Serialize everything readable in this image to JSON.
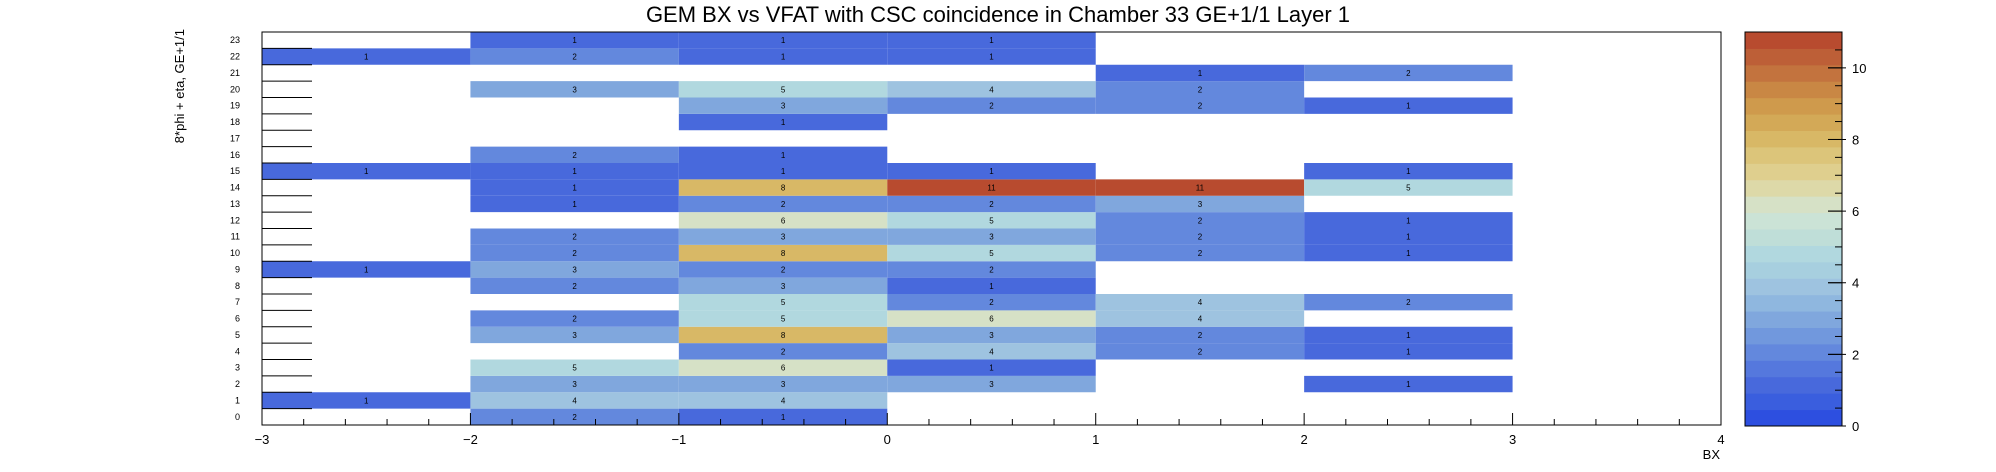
{
  "chart_data": {
    "type": "heatmap",
    "title": "GEM BX vs VFAT with CSC coincidence in Chamber 33 GE+1/1 Layer 1",
    "xlabel": "BX",
    "ylabel": "8*phi + eta, GE+1/1",
    "xlim": [
      -3,
      4
    ],
    "ylim": [
      0,
      24
    ],
    "x_tick_labels": [
      "−3",
      "−2",
      "−1",
      "0",
      "1",
      "2",
      "3",
      "4"
    ],
    "y_tick_labels": [
      "0",
      "1",
      "2",
      "3",
      "4",
      "5",
      "6",
      "7",
      "8",
      "9",
      "10",
      "11",
      "12",
      "13",
      "14",
      "15",
      "16",
      "17",
      "18",
      "19",
      "20",
      "21",
      "22",
      "23"
    ],
    "z_range": [
      0,
      11
    ],
    "z_tick_labels": [
      "0",
      "2",
      "4",
      "6",
      "8",
      "10"
    ],
    "palette": [
      "#2d4fe0",
      "#3a5ede",
      "#4869dc",
      "#5578dd",
      "#6388dd",
      "#7198dd",
      "#80a7dd",
      "#8fb7df",
      "#9ec3e0",
      "#a7cfdf",
      "#b1d8df",
      "#bfded8",
      "#cbe3d6",
      "#d6e1c6",
      "#ddd9a8",
      "#dfcf8e",
      "#dcc57a",
      "#d8b866",
      "#d3a957",
      "#cf9a4c",
      "#c98744",
      "#c3733e",
      "#bd5f37",
      "#b84b2f"
    ],
    "x_bins": [
      -3,
      -2,
      -1,
      0,
      1,
      2
    ],
    "cells": [
      [
        -2,
        0,
        2
      ],
      [
        -1,
        0,
        1
      ],
      [
        -3,
        1,
        1
      ],
      [
        -2,
        1,
        4
      ],
      [
        -1,
        1,
        4
      ],
      [
        -2,
        2,
        3
      ],
      [
        -1,
        2,
        3
      ],
      [
        0,
        2,
        3
      ],
      [
        2,
        2,
        1
      ],
      [
        -2,
        3,
        5
      ],
      [
        -1,
        3,
        6
      ],
      [
        0,
        3,
        1
      ],
      [
        -1,
        4,
        2
      ],
      [
        0,
        4,
        4
      ],
      [
        1,
        4,
        2
      ],
      [
        2,
        4,
        1
      ],
      [
        -2,
        5,
        3
      ],
      [
        -1,
        5,
        8
      ],
      [
        0,
        5,
        3
      ],
      [
        1,
        5,
        2
      ],
      [
        2,
        5,
        1
      ],
      [
        -2,
        6,
        2
      ],
      [
        -1,
        6,
        5
      ],
      [
        0,
        6,
        6
      ],
      [
        1,
        6,
        4
      ],
      [
        -1,
        7,
        5
      ],
      [
        0,
        7,
        2
      ],
      [
        1,
        7,
        4
      ],
      [
        2,
        7,
        2
      ],
      [
        -2,
        8,
        2
      ],
      [
        -1,
        8,
        3
      ],
      [
        0,
        8,
        1
      ],
      [
        -3,
        9,
        1
      ],
      [
        -2,
        9,
        3
      ],
      [
        -1,
        9,
        2
      ],
      [
        0,
        9,
        2
      ],
      [
        -2,
        10,
        2
      ],
      [
        -1,
        10,
        8
      ],
      [
        0,
        10,
        5
      ],
      [
        1,
        10,
        2
      ],
      [
        2,
        10,
        1
      ],
      [
        -2,
        11,
        2
      ],
      [
        -1,
        11,
        3
      ],
      [
        0,
        11,
        3
      ],
      [
        1,
        11,
        2
      ],
      [
        2,
        11,
        1
      ],
      [
        -1,
        12,
        6
      ],
      [
        0,
        12,
        5
      ],
      [
        1,
        12,
        2
      ],
      [
        2,
        12,
        1
      ],
      [
        -2,
        13,
        1
      ],
      [
        -1,
        13,
        2
      ],
      [
        0,
        13,
        2
      ],
      [
        1,
        13,
        3
      ],
      [
        -2,
        14,
        1
      ],
      [
        -1,
        14,
        8
      ],
      [
        0,
        14,
        11
      ],
      [
        1,
        14,
        11
      ],
      [
        2,
        14,
        5
      ],
      [
        -3,
        15,
        1
      ],
      [
        -2,
        15,
        1
      ],
      [
        -1,
        15,
        1
      ],
      [
        0,
        15,
        1
      ],
      [
        2,
        15,
        1
      ],
      [
        -2,
        16,
        2
      ],
      [
        -1,
        16,
        1
      ],
      [
        -1,
        18,
        1
      ],
      [
        -1,
        19,
        3
      ],
      [
        0,
        19,
        2
      ],
      [
        1,
        19,
        2
      ],
      [
        2,
        19,
        1
      ],
      [
        -2,
        20,
        3
      ],
      [
        -1,
        20,
        5
      ],
      [
        0,
        20,
        4
      ],
      [
        1,
        20,
        2
      ],
      [
        1,
        21,
        1
      ],
      [
        2,
        21,
        2
      ],
      [
        -3,
        22,
        1
      ],
      [
        -2,
        22,
        2
      ],
      [
        -1,
        22,
        1
      ],
      [
        0,
        22,
        1
      ],
      [
        -2,
        23,
        1
      ],
      [
        -1,
        23,
        1
      ],
      [
        0,
        23,
        1
      ]
    ]
  }
}
